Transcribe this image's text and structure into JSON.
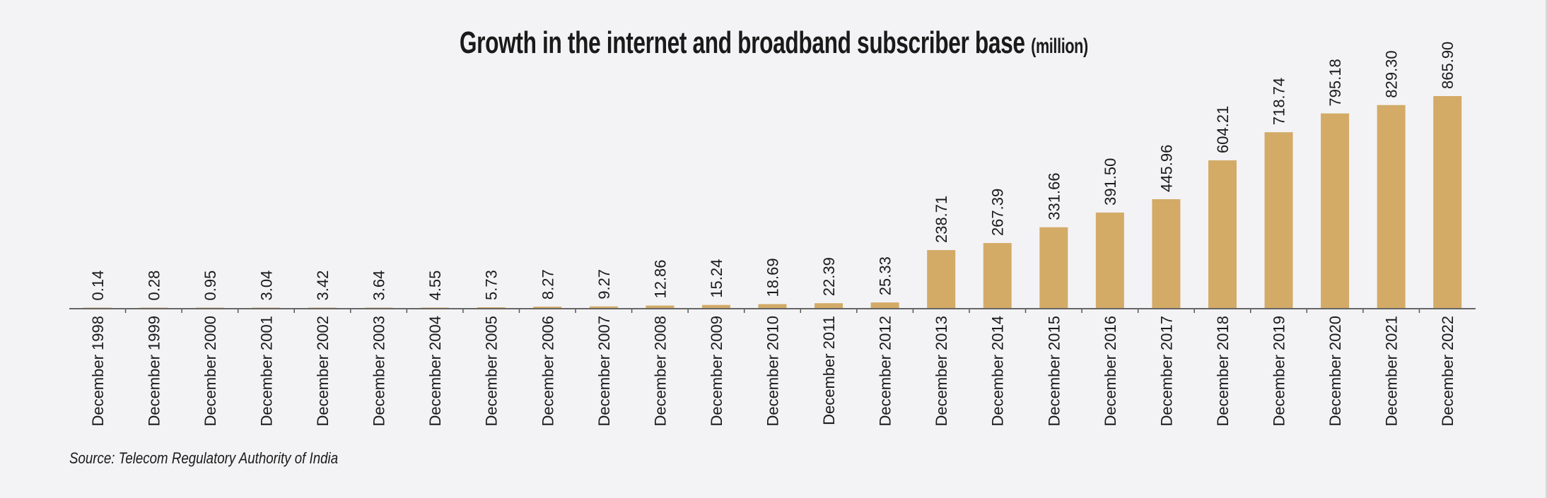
{
  "chart_data": {
    "type": "bar",
    "title": "Growth in the internet and broadband subscriber base",
    "title_unit": "(million)",
    "categories": [
      "December 1998",
      "December 1999",
      "December 2000",
      "December 2001",
      "December 2002",
      "December 2003",
      "December 2004",
      "December 2005",
      "December 2006",
      "December 2007",
      "December 2008",
      "December 2009",
      "December 2010",
      "December 2011",
      "December 2012",
      "December 2013",
      "December 2014",
      "December 2015",
      "December 2016",
      "December 2017",
      "December 2018",
      "December 2019",
      "December 2020",
      "December 2021",
      "December 2022"
    ],
    "values": [
      0.14,
      0.28,
      0.95,
      3.04,
      3.42,
      3.64,
      4.55,
      5.73,
      8.27,
      9.27,
      12.86,
      15.24,
      18.69,
      22.39,
      25.33,
      238.71,
      267.39,
      331.66,
      391.5,
      445.96,
      604.21,
      718.74,
      795.18,
      829.3,
      865.9
    ],
    "value_labels": [
      "0.14",
      "0.28",
      "0.95",
      "3.04",
      "3.42",
      "3.64",
      "4.55",
      "5.73",
      "8.27",
      "9.27",
      "12.86",
      "15.24",
      "18.69",
      "22.39",
      "25.33",
      "238.71",
      "267.39",
      "331.66",
      "391.50",
      "445.96",
      "604.21",
      "718.74",
      "795.18",
      "829.30",
      "865.90"
    ],
    "xlabel": "",
    "ylabel": "",
    "ylim": [
      0,
      865.9
    ],
    "grid": false,
    "bar_color": "#d3ab67",
    "source": "Source: Telecom Regulatory Authority of India"
  }
}
